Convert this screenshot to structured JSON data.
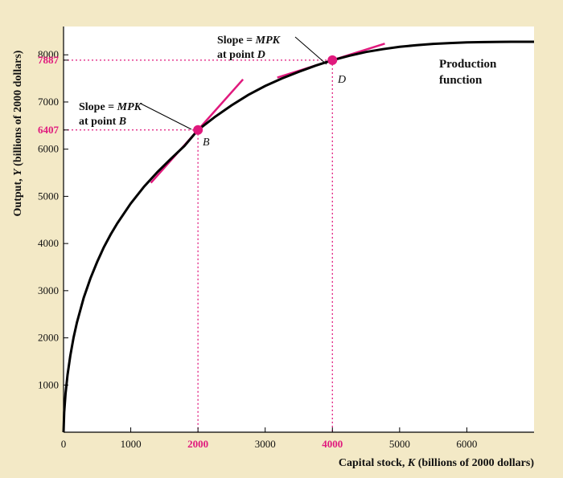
{
  "chart_data": {
    "type": "line",
    "title": "",
    "xlabel_prefix": "Capital stock, ",
    "xlabel_var": "K",
    "xlabel_suffix": " (billions of 2000 dollars)",
    "ylabel_prefix": "Output, ",
    "ylabel_var": "Y",
    "ylabel_suffix": " (billions of 2000 dollars)",
    "xlim": [
      0,
      7000
    ],
    "ylim": [
      0,
      8600
    ],
    "x_ticks": [
      0,
      1000,
      2000,
      3000,
      4000,
      5000,
      6000
    ],
    "y_ticks": [
      1000,
      2000,
      3000,
      4000,
      5000,
      6000,
      7000,
      8000
    ],
    "highlight_x_ticks": [
      2000,
      4000
    ],
    "highlight_y_ticks": [
      6407,
      7887
    ],
    "curve_label_line1": "Production",
    "curve_label_line2": "function",
    "series": [
      {
        "name": "Production function",
        "x": [
          0,
          10,
          30,
          60,
          100,
          150,
          200,
          300,
          400,
          500,
          600,
          700,
          800,
          1000,
          1200,
          1400,
          1600,
          1800,
          2000,
          2250,
          2500,
          2750,
          3000,
          3250,
          3500,
          3750,
          4000,
          4250,
          4500,
          4750,
          5000,
          5250,
          5500,
          5750,
          6000,
          6250,
          6500,
          6750,
          7000
        ],
        "y": [
          0,
          420,
          820,
          1220,
          1620,
          2010,
          2330,
          2850,
          3260,
          3610,
          3920,
          4190,
          4430,
          4850,
          5210,
          5520,
          5800,
          6070,
          6407,
          6680,
          6930,
          7150,
          7340,
          7500,
          7640,
          7770,
          7887,
          7980,
          8060,
          8120,
          8170,
          8205,
          8232,
          8250,
          8263,
          8270,
          8274,
          8276,
          8277
        ]
      }
    ],
    "points": [
      {
        "name": "B",
        "x": 2000,
        "y": 6407,
        "slope": 1.6,
        "tangent_x": [
          1300,
          2670
        ],
        "annotation_line1_prefix": "Slope = ",
        "annotation_line1_var": "MPK",
        "annotation_line2_prefix": "at point ",
        "annotation_line2_var": "B"
      },
      {
        "name": "D",
        "x": 4000,
        "y": 7887,
        "slope": 0.45,
        "tangent_x": [
          3180,
          4780
        ],
        "annotation_line1_prefix": "Slope = ",
        "annotation_line1_var": "MPK",
        "annotation_line2_prefix": "at point ",
        "annotation_line2_var": "D"
      }
    ],
    "colors": {
      "background": "#f3e9c6",
      "plot": "#ffffff",
      "curve": "#000000",
      "highlight": "#e0197d"
    }
  }
}
